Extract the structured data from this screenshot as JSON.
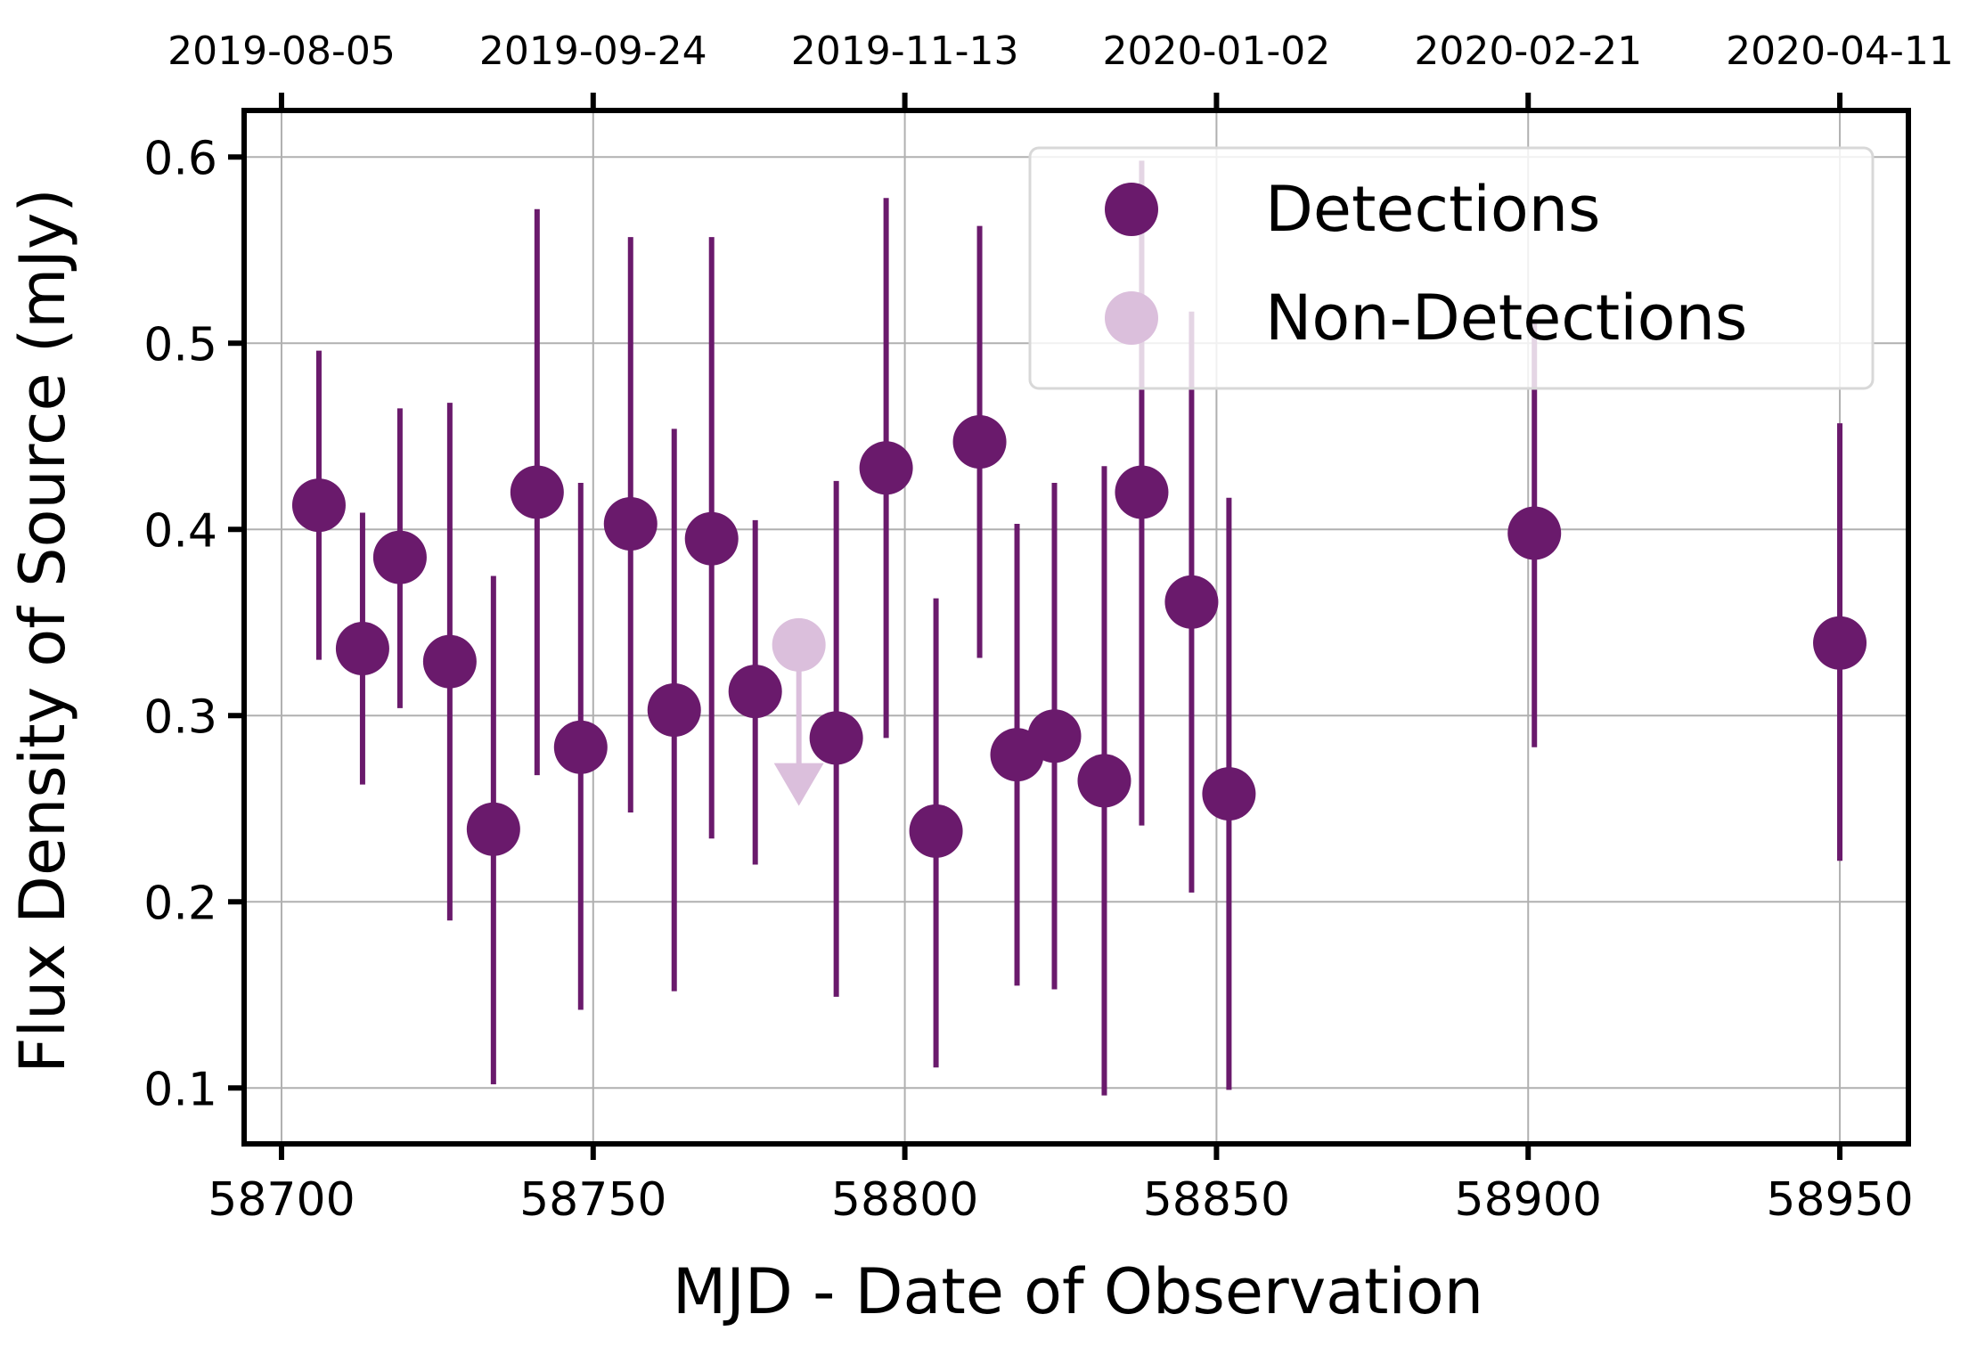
{
  "chart_data": {
    "type": "scatter",
    "title": "",
    "xlabel": "MJD - Date of Observation",
    "ylabel": "Flux Density of Source (mJy)",
    "xlim": [
      58694,
      58961
    ],
    "ylim": [
      0.07,
      0.625
    ],
    "x_ticks": [
      58700,
      58750,
      58800,
      58850,
      58900,
      58950
    ],
    "y_ticks": [
      0.1,
      0.2,
      0.3,
      0.4,
      0.5,
      0.6
    ],
    "y_tick_labels": [
      "0.1",
      "0.2",
      "0.3",
      "0.4",
      "0.5",
      "0.6"
    ],
    "top_x_ticks": [
      58700,
      58750,
      58800,
      58850,
      58900,
      58950
    ],
    "top_x_tick_labels": [
      "2019-08-05",
      "2019-09-24",
      "2019-11-13",
      "2020-01-02",
      "2020-02-21",
      "2020-04-11"
    ],
    "grid": true,
    "legend_position": "top-right",
    "colors": {
      "detections": "#6a1a6c",
      "non_detections": "#dbbfdc",
      "grid": "#b0b0b0",
      "axes": "#000000"
    },
    "series": [
      {
        "name": "Detections",
        "points": [
          {
            "x": 58706,
            "y": 0.413,
            "yerr_low": 0.33,
            "yerr_high": 0.496
          },
          {
            "x": 58713,
            "y": 0.336,
            "yerr_low": 0.263,
            "yerr_high": 0.409
          },
          {
            "x": 58719,
            "y": 0.385,
            "yerr_low": 0.304,
            "yerr_high": 0.465
          },
          {
            "x": 58727,
            "y": 0.329,
            "yerr_low": 0.19,
            "yerr_high": 0.468
          },
          {
            "x": 58734,
            "y": 0.239,
            "yerr_low": 0.102,
            "yerr_high": 0.375
          },
          {
            "x": 58741,
            "y": 0.42,
            "yerr_low": 0.268,
            "yerr_high": 0.572
          },
          {
            "x": 58748,
            "y": 0.283,
            "yerr_low": 0.142,
            "yerr_high": 0.425
          },
          {
            "x": 58756,
            "y": 0.403,
            "yerr_low": 0.248,
            "yerr_high": 0.557
          },
          {
            "x": 58763,
            "y": 0.303,
            "yerr_low": 0.152,
            "yerr_high": 0.454
          },
          {
            "x": 58769,
            "y": 0.395,
            "yerr_low": 0.234,
            "yerr_high": 0.557
          },
          {
            "x": 58776,
            "y": 0.313,
            "yerr_low": 0.22,
            "yerr_high": 0.405
          },
          {
            "x": 58789,
            "y": 0.288,
            "yerr_low": 0.149,
            "yerr_high": 0.426
          },
          {
            "x": 58797,
            "y": 0.433,
            "yerr_low": 0.288,
            "yerr_high": 0.578
          },
          {
            "x": 58805,
            "y": 0.238,
            "yerr_low": 0.111,
            "yerr_high": 0.363
          },
          {
            "x": 58812,
            "y": 0.447,
            "yerr_low": 0.331,
            "yerr_high": 0.563
          },
          {
            "x": 58818,
            "y": 0.279,
            "yerr_low": 0.155,
            "yerr_high": 0.403
          },
          {
            "x": 58824,
            "y": 0.289,
            "yerr_low": 0.153,
            "yerr_high": 0.425
          },
          {
            "x": 58832,
            "y": 0.265,
            "yerr_low": 0.096,
            "yerr_high": 0.434
          },
          {
            "x": 58838,
            "y": 0.42,
            "yerr_low": 0.241,
            "yerr_high": 0.598
          },
          {
            "x": 58846,
            "y": 0.361,
            "yerr_low": 0.205,
            "yerr_high": 0.517
          },
          {
            "x": 58852,
            "y": 0.258,
            "yerr_low": 0.099,
            "yerr_high": 0.417
          },
          {
            "x": 58901,
            "y": 0.398,
            "yerr_low": 0.283,
            "yerr_high": 0.513
          },
          {
            "x": 58950,
            "y": 0.339,
            "yerr_low": 0.222,
            "yerr_high": 0.457
          }
        ]
      },
      {
        "name": "Non-Detections",
        "points": [
          {
            "x": 58783,
            "y": 0.338,
            "upper_limit": true,
            "arrow_to": 0.263
          }
        ]
      }
    ]
  }
}
